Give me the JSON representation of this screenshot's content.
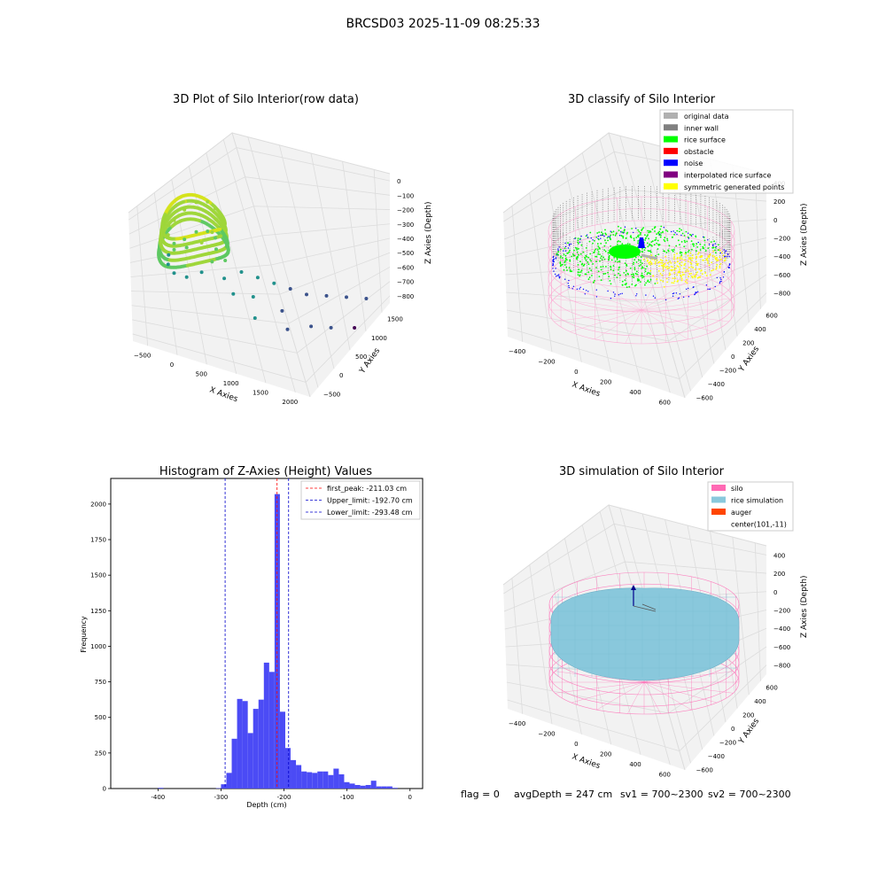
{
  "figure": {
    "title": "BRCSD03 2025-11-09 08:25:33",
    "footer": {
      "flag": "flag = 0",
      "avg_depth": "avgDepth = 247 cm",
      "sv1": "sv1 = 700~2300",
      "sv2": "sv2 = 700~2300"
    }
  },
  "colors": {
    "pane": "#f2f2f2",
    "grid": "#dcdcdc",
    "histogram_bar": "#4b4bf5",
    "first_peak_line": "#ff0000",
    "limit_line": "#0000cc",
    "silo_wire": "#ff69b4",
    "rice_surface": "#89c8dc",
    "auger": "#ff4500",
    "original": "#b0b0b0",
    "inner_wall": "#808080",
    "rice": "#00ff00",
    "obstacle": "#ff0000",
    "noise": "#0000ff",
    "interpolated": "#800080",
    "symmetric": "#ffff00"
  },
  "chart_data": [
    {
      "type": "scatter",
      "projection": "3d",
      "title": "3D Plot of Silo Interior(row data)",
      "xlabel": "X Axies",
      "ylabel": "Y Axies",
      "zlabel": "Z Axies (Depth)",
      "xlim": [
        -600,
        2200
      ],
      "ylim": [
        -600,
        1600
      ],
      "zlim": [
        -850,
        50
      ],
      "xticks": [
        "−500",
        "0",
        "500",
        "1000",
        "1500",
        "2000"
      ],
      "yticks": [
        "−500",
        "0",
        "500",
        "1000",
        "1500"
      ],
      "zticks": [
        "0",
        "−100",
        "−200",
        "−300",
        "−400",
        "−500",
        "−600",
        "−700",
        "−800"
      ],
      "colormap": "viridis",
      "series": [
        {
          "points": [
            [
              -350,
              100,
              -200
            ],
            [
              -300,
              300,
              -180
            ],
            [
              -200,
              450,
              -160
            ],
            [
              -50,
              500,
              -150
            ],
            [
              100,
              450,
              -160
            ],
            [
              200,
              300,
              -180
            ],
            [
              250,
              100,
              -200
            ],
            [
              200,
              -100,
              -220
            ],
            [
              50,
              -250,
              -230
            ],
            [
              -150,
              -250,
              -230
            ],
            [
              -300,
              -150,
              -220
            ],
            [
              -380,
              0,
              -210
            ],
            [
              -350,
              100,
              -400
            ],
            [
              -300,
              300,
              -380
            ],
            [
              -200,
              450,
              -360
            ],
            [
              -50,
              500,
              -350
            ],
            [
              100,
              450,
              -360
            ],
            [
              200,
              300,
              -380
            ],
            [
              250,
              100,
              -400
            ],
            [
              200,
              -100,
              -420
            ],
            [
              50,
              -250,
              -430
            ],
            [
              -150,
              -250,
              -430
            ],
            [
              -300,
              -150,
              -420
            ],
            [
              -380,
              0,
              -410
            ],
            [
              400,
              200,
              -400
            ],
            [
              500,
              0,
              -450
            ],
            [
              600,
              300,
              -480
            ],
            [
              700,
              -100,
              -500
            ],
            [
              800,
              400,
              -520
            ],
            [
              900,
              100,
              -550
            ],
            [
              1000,
              500,
              -560
            ],
            [
              1100,
              -200,
              -580
            ],
            [
              1200,
              600,
              -600
            ],
            [
              1300,
              200,
              -620
            ],
            [
              1400,
              700,
              -640
            ],
            [
              1500,
              0,
              -660
            ],
            [
              1600,
              900,
              -680
            ],
            [
              1700,
              300,
              -700
            ],
            [
              1800,
              1100,
              -720
            ],
            [
              1900,
              500,
              -740
            ],
            [
              2000,
              1300,
              -760
            ],
            [
              2100,
              800,
              -800
            ]
          ]
        }
      ]
    },
    {
      "type": "scatter",
      "projection": "3d",
      "title": "3D classify of Silo Interior",
      "xlabel": "X Axies",
      "ylabel": "Y Axies",
      "zlabel": "Z Axies (Depth)",
      "xlim": [
        -500,
        750
      ],
      "ylim": [
        -650,
        650
      ],
      "zlim": [
        -900,
        400
      ],
      "xticks": [
        "−400",
        "−200",
        "0",
        "200",
        "400",
        "600"
      ],
      "yticks": [
        "−600",
        "−400",
        "−200",
        "0",
        "200",
        "400",
        "600"
      ],
      "zticks": [
        "400",
        "200",
        "0",
        "−200",
        "−400",
        "−600",
        "−800"
      ],
      "legend": {
        "location": "top-right",
        "entries": [
          "original data",
          "inner wall",
          "rice surface",
          "obstacle",
          "noise",
          "interpolated rice surface",
          "symmetric generated points"
        ]
      },
      "silo": {
        "center": [
          101,
          -11
        ],
        "radius": 560,
        "z_top": 50,
        "z_bottom": -900
      },
      "series": [
        {
          "name": "inner wall",
          "ring_radius": 550,
          "z_range": [
            -300,
            50
          ]
        },
        {
          "name": "rice surface",
          "z_mean": -220
        },
        {
          "name": "noise",
          "z_mean": -260
        },
        {
          "name": "symmetric generated points",
          "z_mean": -220
        }
      ]
    },
    {
      "type": "bar",
      "title": "Histogram of Z-Axies (Height) Values",
      "xlabel": "Depth (cm)",
      "ylabel": "Frequency",
      "xlim": [
        -475,
        20
      ],
      "ylim": [
        0,
        2180
      ],
      "xticks": [
        -400,
        -300,
        -200,
        -100,
        0
      ],
      "yticks": [
        0,
        250,
        500,
        750,
        1000,
        1250,
        1500,
        1750,
        2000
      ],
      "bin_width": 8.5,
      "bins": [
        {
          "x": -400,
          "y": 5
        },
        {
          "x": -308,
          "y": 3
        },
        {
          "x": -300,
          "y": 30
        },
        {
          "x": -291.5,
          "y": 110
        },
        {
          "x": -283,
          "y": 350
        },
        {
          "x": -274.5,
          "y": 630
        },
        {
          "x": -266,
          "y": 615
        },
        {
          "x": -257.5,
          "y": 390
        },
        {
          "x": -249,
          "y": 560
        },
        {
          "x": -240.5,
          "y": 625
        },
        {
          "x": -232,
          "y": 885
        },
        {
          "x": -223.5,
          "y": 820
        },
        {
          "x": -215,
          "y": 2070
        },
        {
          "x": -206.5,
          "y": 540
        },
        {
          "x": -198,
          "y": 285
        },
        {
          "x": -189.5,
          "y": 200
        },
        {
          "x": -181,
          "y": 165
        },
        {
          "x": -172.5,
          "y": 120
        },
        {
          "x": -164,
          "y": 115
        },
        {
          "x": -155.5,
          "y": 110
        },
        {
          "x": -147,
          "y": 120
        },
        {
          "x": -138.5,
          "y": 120
        },
        {
          "x": -130,
          "y": 95
        },
        {
          "x": -121.5,
          "y": 140
        },
        {
          "x": -113,
          "y": 100
        },
        {
          "x": -104.5,
          "y": 45
        },
        {
          "x": -96,
          "y": 35
        },
        {
          "x": -87.5,
          "y": 25
        },
        {
          "x": -79,
          "y": 20
        },
        {
          "x": -70.5,
          "y": 25
        },
        {
          "x": -62,
          "y": 55
        },
        {
          "x": -53.5,
          "y": 15
        },
        {
          "x": -45,
          "y": 15
        },
        {
          "x": -36.5,
          "y": 15
        },
        {
          "x": -28,
          "y": 5
        }
      ],
      "vlines": [
        {
          "label": "first_peak: -211.03 cm",
          "x": -211.03,
          "color": "#ff0000"
        },
        {
          "label": "Upper_limit: -192.70 cm",
          "x": -192.7,
          "color": "#0000cc"
        },
        {
          "label": "Lower_limit: -293.48 cm",
          "x": -293.48,
          "color": "#0000cc"
        }
      ],
      "legend": {
        "location": "top-right"
      }
    },
    {
      "type": "surface",
      "projection": "3d",
      "title": "3D simulation of Silo Interior",
      "xlabel": "X Axies",
      "ylabel": "Y Axies",
      "zlabel": "Z Axies (Depth)",
      "xlim": [
        -500,
        750
      ],
      "ylim": [
        -650,
        650
      ],
      "zlim": [
        -900,
        450
      ],
      "xticks": [
        "−400",
        "−200",
        "0",
        "200",
        "400",
        "600"
      ],
      "yticks": [
        "−600",
        "−400",
        "−200",
        "0",
        "200",
        "400",
        "600"
      ],
      "zticks": [
        "400",
        "200",
        "0",
        "−200",
        "−400",
        "−600",
        "−800"
      ],
      "legend": {
        "location": "top-right",
        "entries": [
          "silo",
          "rice simulation",
          "auger",
          "center(101,-11)"
        ]
      },
      "silo": {
        "center": [
          101,
          -11
        ],
        "radius": 560,
        "z_top": 50,
        "z_bottom": -900
      },
      "rice_surface_z": -247
    }
  ]
}
